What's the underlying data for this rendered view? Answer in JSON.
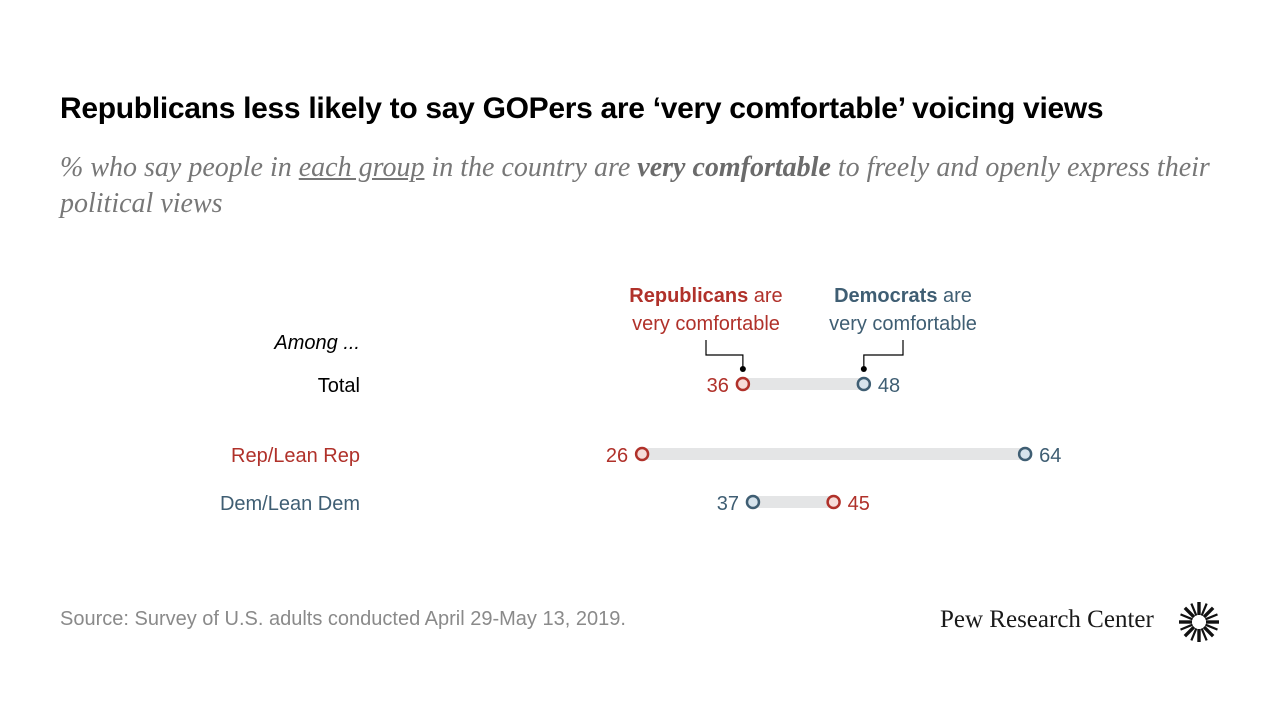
{
  "header": {
    "title": "Republicans less likely to say GOPers are ‘very comfortable’ voicing views",
    "subtitle_part1": "% who say people in ",
    "subtitle_underlined": "each group",
    "subtitle_part2": " in the country are ",
    "subtitle_bold": "very comfortable",
    "subtitle_part3": " to freely and openly express their political views"
  },
  "footer": {
    "source": "Source: Survey of U.S. adults conducted April 29-May 13, 2019.",
    "brand": "Pew Research Center"
  },
  "colors": {
    "republican": "#b0312a",
    "democrat": "#3f5e73",
    "bar": "#e4e5e6",
    "marker_fill_rep": "#f6dcd9",
    "marker_fill_dem": "#d6e3ec",
    "text": "#000000"
  },
  "chart_data": {
    "type": "dot-range",
    "row_header": "Among ...",
    "series": [
      {
        "name": "Republicans are very comfortable",
        "name_bold": "Republicans",
        "name_rest": " are",
        "name_line2": "very comfortable"
      },
      {
        "name": "Democrats are very comfortable",
        "name_bold": "Democrats",
        "name_rest": " are",
        "name_line2": "very comfortable"
      }
    ],
    "rows": [
      {
        "label": "Total",
        "republicans": 36,
        "democrats": 48,
        "label_color": "text"
      },
      {
        "label": "Rep/Lean Rep",
        "republicans": 26,
        "democrats": 64,
        "label_color": "republican"
      },
      {
        "label": "Dem/Lean Dem",
        "republicans": 45,
        "democrats": 37,
        "label_color": "democrat"
      }
    ],
    "xlim": [
      0,
      100
    ]
  }
}
